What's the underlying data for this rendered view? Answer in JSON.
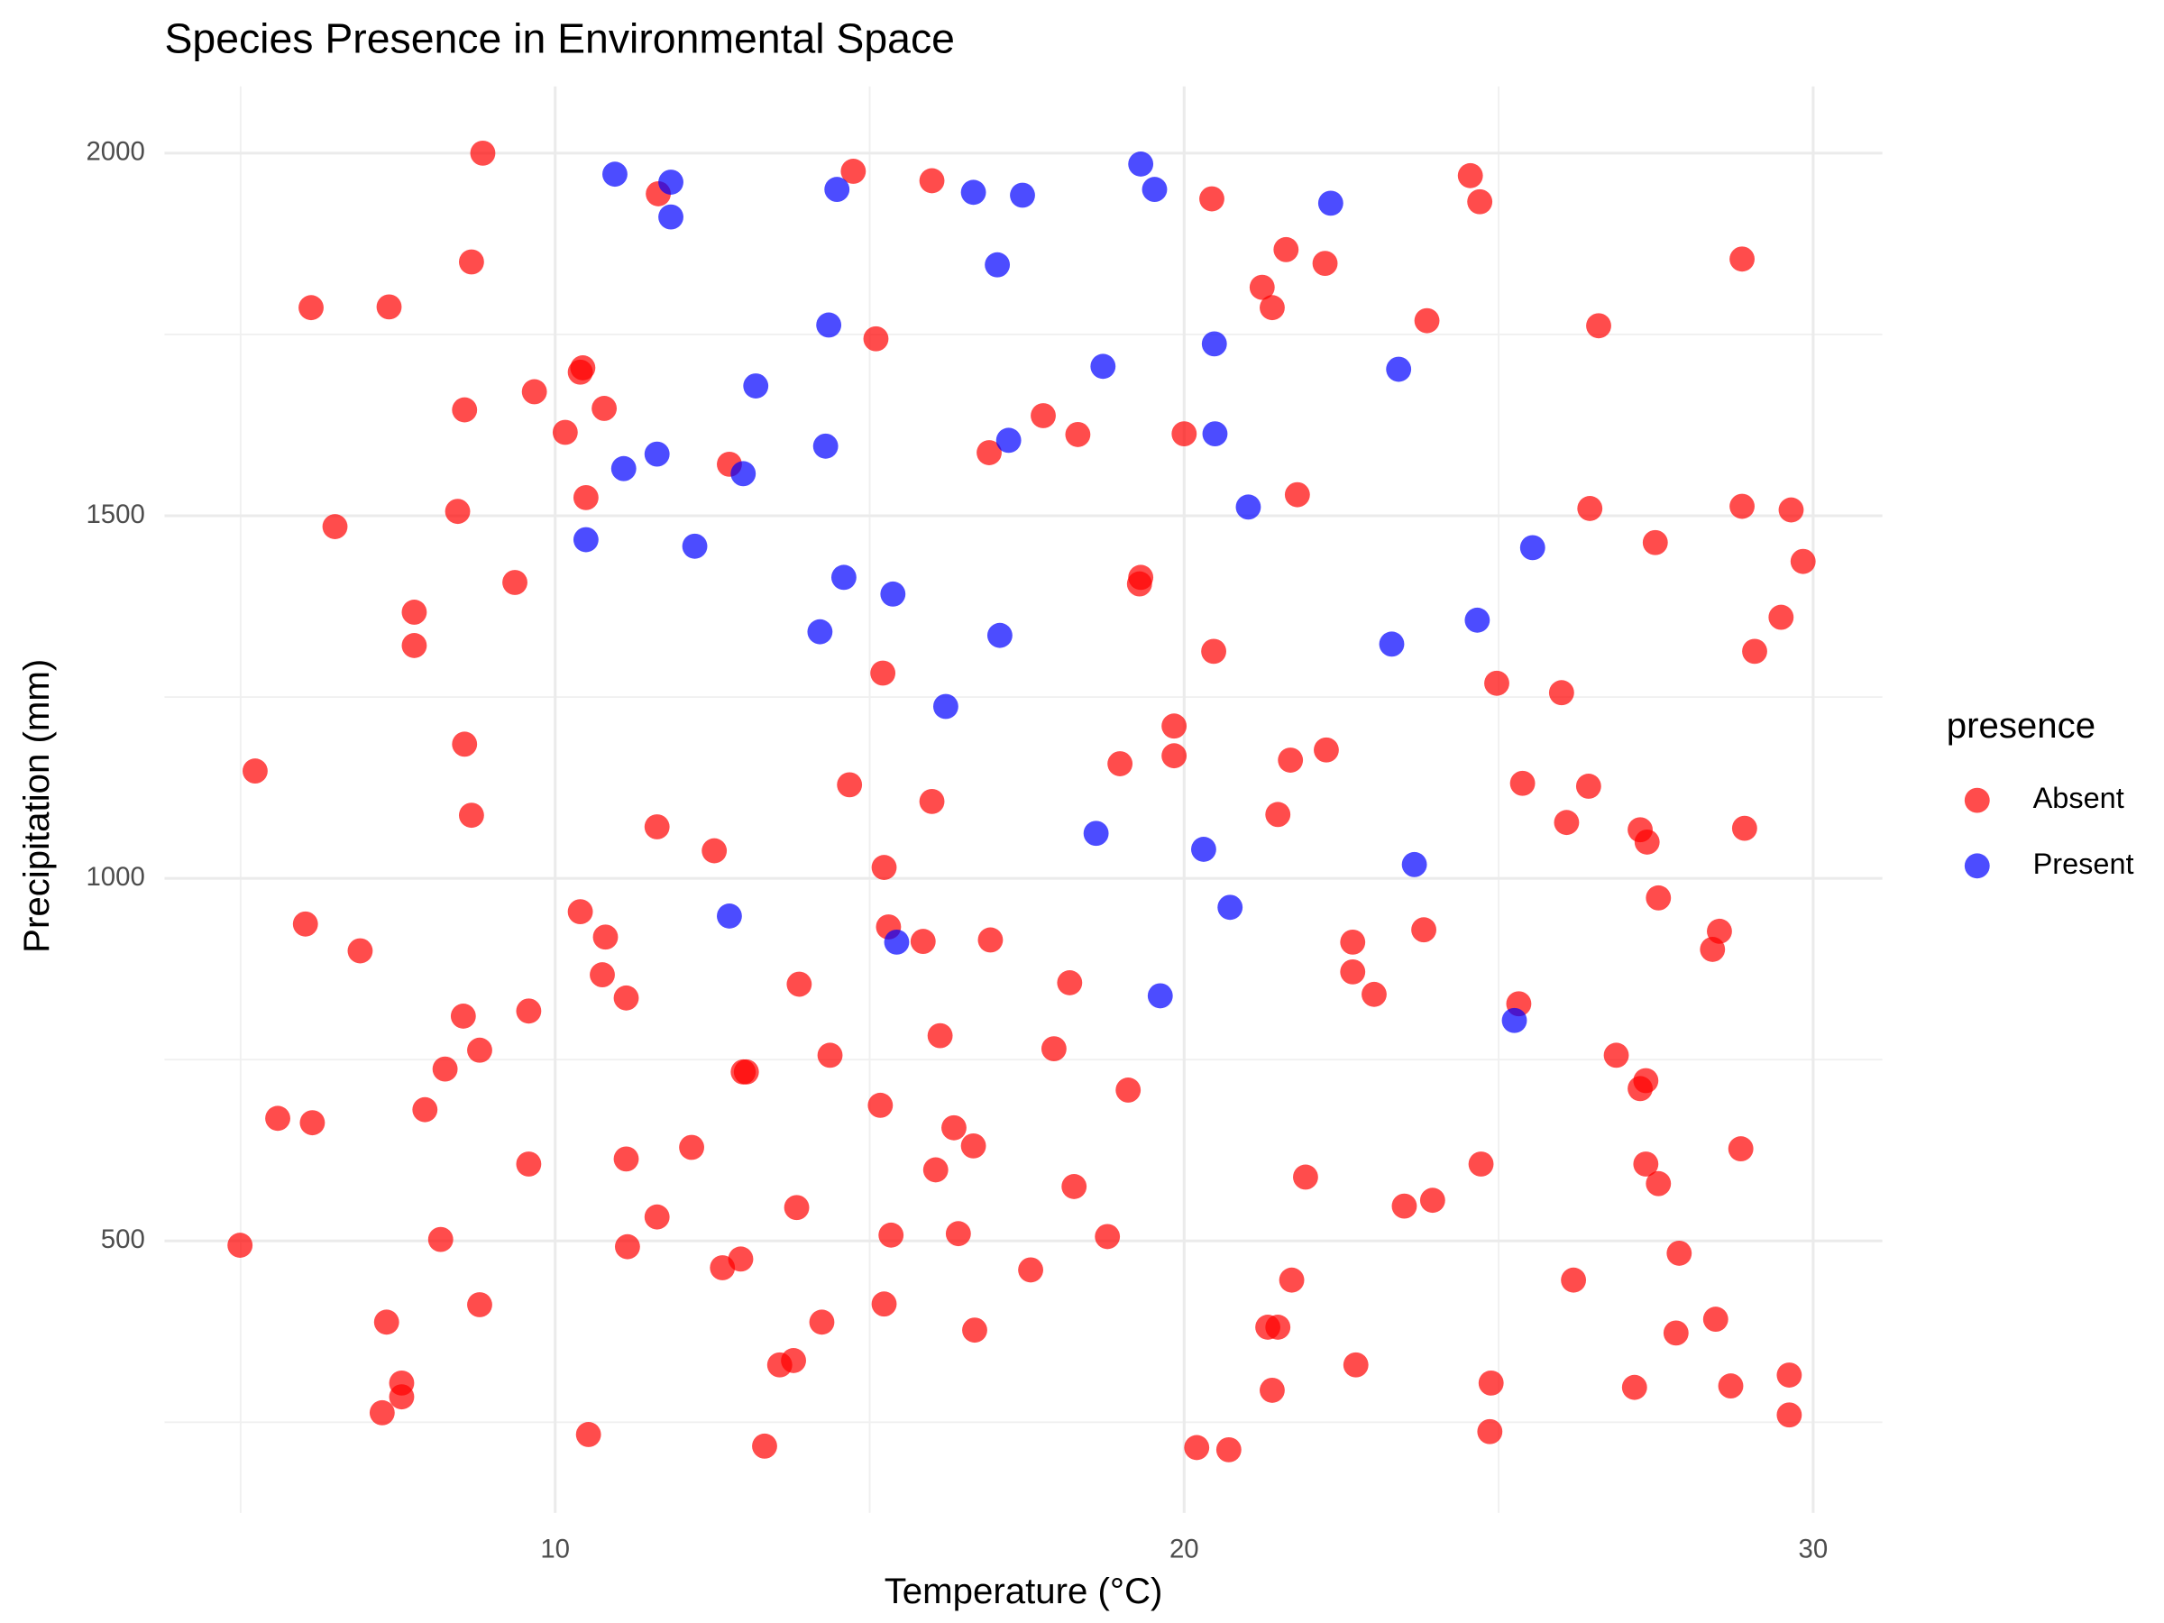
{
  "chart_data": {
    "type": "scatter",
    "title": "Species Presence in Environmental Space",
    "x_label": "Temperature (°C)",
    "y_label": "Precipitation (mm)",
    "legend_title": "presence",
    "legend_position": "right",
    "grid": true,
    "xlim": [
      3.79,
      31.1
    ],
    "ylim": [
      125,
      2092
    ],
    "xticks": [
      10,
      20,
      30
    ],
    "yticks": [
      500,
      1000,
      1500,
      2000
    ],
    "series": [
      {
        "name": "Absent",
        "color": "#ff0000",
        "x": [
          8.85,
          14.74,
          11.64,
          15.99,
          20.44,
          24.55,
          24.7,
          8.67,
          6.12,
          7.36,
          21.62,
          22.24,
          28.87,
          21.24,
          21.4,
          23.86,
          26.59,
          15.1,
          10.44,
          10.4,
          9.67,
          8.56,
          10.78,
          10.16,
          17.76,
          18.31,
          20.0,
          16.9,
          12.77,
          10.49,
          21.8,
          6.5,
          8.45,
          26.45,
          28.87,
          29.65,
          27.49,
          29.84,
          9.36,
          19.31,
          19.29,
          7.76,
          7.76,
          29.49,
          20.47,
          29.07,
          15.21,
          24.97,
          26.0,
          19.84,
          8.56,
          5.23,
          18.98,
          19.84,
          21.69,
          22.26,
          14.68,
          25.38,
          26.43,
          15.99,
          8.67,
          21.49,
          26.08,
          27.25,
          28.91,
          27.36,
          11.62,
          12.53,
          15.23,
          10.4,
          6.03,
          6.9,
          10.8,
          15.3,
          15.85,
          16.92,
          22.68,
          23.81,
          27.54,
          28.51,
          28.4,
          10.75,
          11.13,
          13.88,
          18.18,
          22.68,
          23.02,
          25.32,
          8.54,
          9.58,
          8.8,
          8.25,
          16.12,
          14.37,
          17.93,
          12.99,
          13.04,
          26.87,
          27.34,
          27.25,
          19.11,
          5.59,
          6.14,
          7.93,
          15.17,
          16.34,
          16.65,
          12.17,
          11.13,
          9.58,
          16.05,
          18.25,
          21.93,
          24.72,
          27.34,
          27.54,
          28.85,
          13.84,
          11.62,
          23.5,
          23.95,
          8.18,
          4.99,
          11.15,
          15.34,
          16.41,
          18.78,
          12.66,
          12.95,
          17.56,
          27.87,
          21.71,
          26.19,
          8.8,
          15.23,
          7.32,
          14.24,
          16.67,
          21.33,
          21.49,
          28.45,
          27.82,
          13.57,
          13.79,
          22.73,
          7.56,
          7.56,
          7.25,
          24.88,
          27.16,
          28.69,
          29.62,
          21.4,
          29.62,
          10.53,
          24.86,
          13.33,
          20.2,
          20.71
        ],
        "y": [
          2000,
          1975,
          1944,
          1962,
          1937,
          1969,
          1933,
          1850,
          1787,
          1788,
          1867,
          1848,
          1854,
          1815,
          1787,
          1769,
          1762,
          1744,
          1704,
          1698,
          1671,
          1646,
          1648,
          1615,
          1638,
          1612,
          1613,
          1587,
          1571,
          1525,
          1529,
          1485,
          1506,
          1510,
          1513,
          1508,
          1463,
          1437,
          1408,
          1415,
          1406,
          1367,
          1321,
          1360,
          1313,
          1313,
          1283,
          1269,
          1256,
          1210,
          1185,
          1148,
          1158,
          1169,
          1163,
          1177,
          1129,
          1131,
          1127,
          1106,
          1087,
          1088,
          1077,
          1067,
          1069,
          1050,
          1071,
          1038,
          1015,
          954,
          937,
          900,
          919,
          933,
          913,
          915,
          912,
          929,
          973,
          927,
          902,
          867,
          835,
          854,
          856,
          871,
          840,
          827,
          810,
          817,
          763,
          737,
          783,
          756,
          765,
          733,
          733,
          756,
          721,
          710,
          708,
          669,
          663,
          681,
          687,
          656,
          631,
          629,
          613,
          606,
          598,
          575,
          588,
          606,
          606,
          579,
          627,
          546,
          533,
          548,
          556,
          502,
          494,
          492,
          508,
          510,
          506,
          463,
          475,
          460,
          483,
          446,
          446,
          412,
          413,
          388,
          388,
          377,
          381,
          381,
          392,
          373,
          329,
          335,
          329,
          304,
          285,
          263,
          304,
          298,
          300,
          315,
          294,
          260,
          233,
          237,
          217,
          215,
          212
        ]
      },
      {
        "name": "Present",
        "color": "#0000ff",
        "x": [
          10.95,
          11.84,
          11.84,
          14.48,
          16.65,
          17.43,
          19.31,
          19.53,
          22.33,
          17.03,
          14.35,
          13.19,
          18.71,
          20.48,
          23.41,
          11.62,
          11.09,
          12.99,
          14.3,
          17.21,
          20.49,
          21.02,
          10.49,
          12.22,
          25.54,
          14.59,
          15.37,
          14.21,
          17.07,
          23.3,
          24.66,
          16.21,
          18.6,
          20.31,
          23.66,
          20.73,
          12.77,
          15.43,
          19.62,
          25.25
        ],
        "y": [
          1971,
          1960,
          1912,
          1950,
          1946,
          1942,
          1985,
          1950,
          1931,
          1846,
          1763,
          1679,
          1706,
          1737,
          1702,
          1585,
          1565,
          1558,
          1596,
          1604,
          1613,
          1512,
          1467,
          1458,
          1456,
          1415,
          1392,
          1340,
          1335,
          1323,
          1356,
          1237,
          1062,
          1040,
          1019,
          960,
          948,
          912,
          838,
          804
        ]
      }
    ]
  }
}
